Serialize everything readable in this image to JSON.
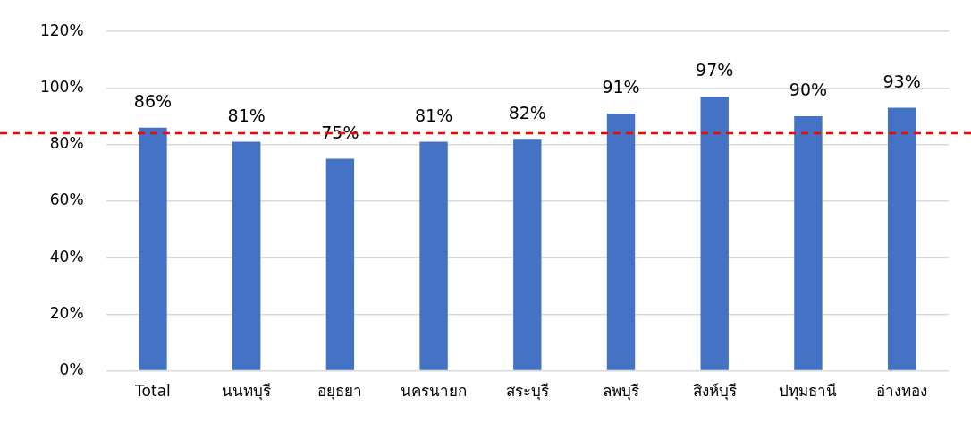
{
  "chart_data": {
    "type": "bar",
    "categories": [
      "Total",
      "นนทบุรี",
      "อยุธยา",
      "นครนายก",
      "สระบุรี",
      "ลพบุรี",
      "สิงห์บุรี",
      "ปทุมธานี",
      "อ่างทอง"
    ],
    "values": [
      86,
      81,
      75,
      81,
      82,
      91,
      97,
      90,
      93
    ],
    "color": "#4472c4",
    "value_labels": [
      "86%",
      "81%",
      "75%",
      "81%",
      "82%",
      "91%",
      "97%",
      "90%",
      "93%"
    ],
    "ylim": [
      0,
      120
    ],
    "yticks": [
      {
        "value": 0,
        "label": "0%"
      },
      {
        "value": 20,
        "label": "20%"
      },
      {
        "value": 40,
        "label": "40%"
      },
      {
        "value": 60,
        "label": "60%"
      },
      {
        "value": 80,
        "label": "80%"
      },
      {
        "value": 100,
        "label": "100%"
      },
      {
        "value": 120,
        "label": "120%"
      }
    ],
    "grid": "y",
    "ref_lines": [
      {
        "axis": "y",
        "value": 84,
        "color": "#ff0000",
        "line_style": "dashed"
      }
    ]
  }
}
